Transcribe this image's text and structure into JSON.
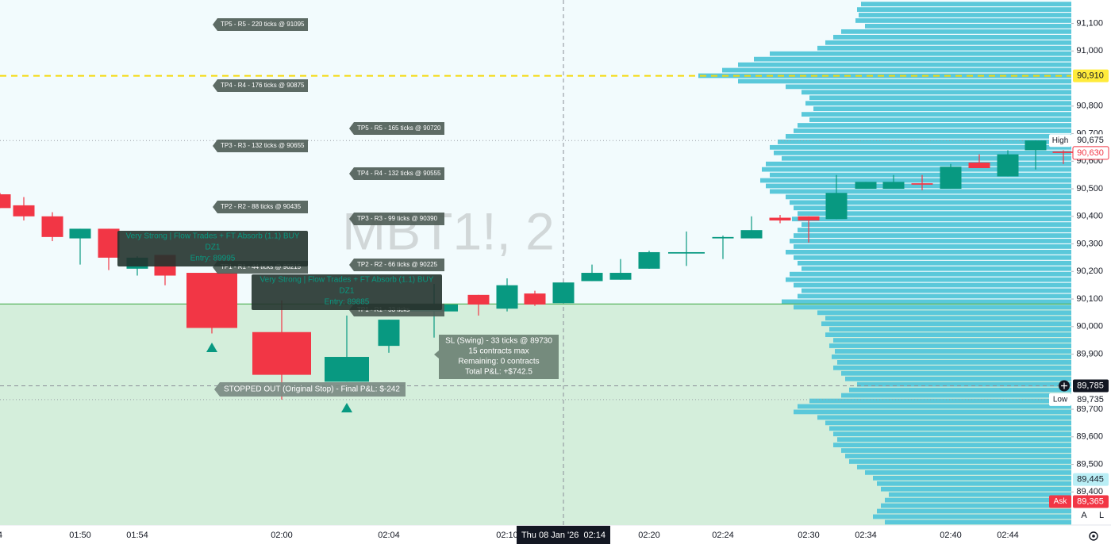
{
  "chart_data": {
    "type": "candlestick",
    "watermark": "MBT1!, 2",
    "categories": [
      "4",
      null,
      null,
      "01:50",
      null,
      "01:54",
      null,
      null,
      "02:00",
      null,
      "02:04",
      null,
      null,
      "02:10",
      null,
      "Thu 08 Jan '26  02:14",
      null,
      null,
      "02:20",
      null,
      "02:24",
      null,
      null,
      "02:30",
      null,
      "02:34",
      null,
      null,
      "02:40",
      null,
      "02:44",
      null,
      null
    ],
    "open": [
      90480,
      90440,
      90400,
      90320,
      90355,
      90210,
      90260,
      90195,
      89980,
      89800,
      89930,
      90055,
      90115,
      90065,
      90120,
      90085,
      90165,
      90170,
      90210,
      90265,
      90320,
      90320,
      90395,
      90400,
      90390,
      90500,
      90500,
      90520,
      90500,
      90595,
      90545,
      90640,
      90635
    ],
    "high": [
      90485,
      90470,
      90415,
      90355,
      90355,
      90255,
      90260,
      90195,
      90095,
      90040,
      90025,
      90155,
      90115,
      90175,
      90130,
      90160,
      90225,
      90245,
      90275,
      90345,
      90330,
      90400,
      90405,
      90400,
      90550,
      90525,
      90550,
      90550,
      90590,
      90625,
      90640,
      90675,
      90640
    ],
    "low": [
      90430,
      90385,
      90310,
      90225,
      90205,
      90185,
      90150,
      89975,
      89735,
      89800,
      89905,
      89960,
      90040,
      90055,
      90075,
      90085,
      90165,
      90170,
      90210,
      90220,
      90245,
      90320,
      90375,
      90305,
      90390,
      90500,
      90500,
      90495,
      90500,
      90575,
      90545,
      90570,
      90590
    ],
    "close": [
      90430,
      90400,
      90325,
      90355,
      90250,
      90250,
      90185,
      89995,
      89825,
      89890,
      90025,
      90080,
      90080,
      90150,
      90080,
      90160,
      90195,
      90195,
      90270,
      90270,
      90325,
      90350,
      90385,
      90385,
      90485,
      90525,
      90525,
      90515,
      90580,
      90575,
      90625,
      90675,
      90630
    ],
    "up_color": "#089981",
    "down_color": "#f23645",
    "ylim": [
      89280,
      91185
    ],
    "yticks": [
      {
        "value": 91100,
        "label": "91,100"
      },
      {
        "value": 91000,
        "label": "91,000"
      },
      {
        "value": 90800,
        "label": "90,800"
      },
      {
        "value": 90700,
        "label": "90,700"
      },
      {
        "value": 90600,
        "label": "90,600"
      },
      {
        "value": 90500,
        "label": "90,500"
      },
      {
        "value": 90400,
        "label": "90,400"
      },
      {
        "value": 90300,
        "label": "90,300"
      },
      {
        "value": 90200,
        "label": "90,200"
      },
      {
        "value": 90100,
        "label": "90,100"
      },
      {
        "value": 90000,
        "label": "90,000"
      },
      {
        "value": 89900,
        "label": "89,900"
      },
      {
        "value": 89700,
        "label": "89,700"
      },
      {
        "value": 89600,
        "label": "89,600"
      },
      {
        "value": 89500,
        "label": "89,500"
      },
      {
        "value": 89400,
        "label": "89,400"
      }
    ],
    "grid": false,
    "levels": [
      {
        "value": 90082,
        "color": "#4caf50",
        "fill_below": "#d4eedb"
      }
    ],
    "price_labels": [
      {
        "value": 90910,
        "label": "90,910",
        "color": "#ffeb3b",
        "text_color": "#131722",
        "line": "dashed",
        "line_color": "#f5d90a"
      },
      {
        "value": 90675,
        "label": "90,675",
        "tag": "High",
        "color": "#ffffff",
        "text_color": "#131722",
        "line": "dotted",
        "line_color": "#9aa0a6"
      },
      {
        "value": 90630,
        "label": "90,630",
        "color": "#ffffff",
        "text_color": "#f23645"
      },
      {
        "value": 89785,
        "label": "89,785",
        "color": "#131722",
        "text_color": "#ffffff",
        "line": "dashed",
        "line_color": "#8a8f98"
      },
      {
        "value": 89735,
        "label": "89,735",
        "tag": "Low",
        "color": "#ffffff",
        "text_color": "#131722",
        "line": "dotted",
        "line_color": "#9aa0a6"
      },
      {
        "value": 89445,
        "label": "89,445",
        "color": "#b9eef5",
        "text_color": "#131722"
      },
      {
        "value": 89365,
        "label": "89,365",
        "tag": "Ask",
        "color": "#f23645",
        "text_color": "#ffffff"
      }
    ],
    "volume_profile": {
      "color": "#5ac8da",
      "ylim": [
        89280,
        91180
      ],
      "xlim": [
        0,
        500
      ],
      "values": [
        265,
        270,
        268,
        272,
        260,
        290,
        300,
        310,
        320,
        380,
        400,
        420,
        440,
        470,
        420,
        360,
        340,
        330,
        335,
        325,
        340,
        330,
        345,
        350,
        360,
        370,
        380,
        375,
        365,
        385,
        390,
        380,
        392,
        385,
        380,
        360,
        355,
        350,
        345,
        352,
        340,
        345,
        350,
        355,
        350,
        360,
        350,
        345,
        340,
        355,
        360,
        350,
        340,
        345,
        365,
        350,
        320,
        310,
        315,
        305,
        310,
        300,
        305,
        298,
        302,
        295,
        300,
        290,
        285,
        270,
        280,
        290,
        330,
        345,
        350,
        320,
        310,
        305,
        300,
        295,
        300,
        290,
        285,
        280,
        270,
        260,
        250,
        245,
        240,
        230,
        235,
        240,
        245,
        250,
        235
      ]
    },
    "annotations": [
      {
        "style": "tp",
        "lines": [
          "TP5 - R5 - 220 ticks @ 91095"
        ]
      },
      {
        "style": "tp",
        "lines": [
          "TP4 - R4 - 176 ticks @ 90875"
        ]
      },
      {
        "style": "tp",
        "lines": [
          "TP3 - R3 - 132 ticks @ 90655"
        ]
      },
      {
        "style": "tp",
        "lines": [
          "TP2 - R2 - 88 ticks @ 90435"
        ]
      },
      {
        "style": "tp",
        "lines": [
          "TP1 - R1 - 44 ticks @ 90215"
        ]
      },
      {
        "style": "tp",
        "lines": [
          "TP5 - R5 - 165 ticks @ 90720"
        ]
      },
      {
        "style": "tp",
        "lines": [
          "TP4 - R4 - 132 ticks @ 90555"
        ]
      },
      {
        "style": "tp",
        "lines": [
          "TP3 - R3 - 99 ticks @ 90390"
        ]
      },
      {
        "style": "tp",
        "lines": [
          "TP2 - R2 - 66 ticks @ 90225"
        ]
      },
      {
        "style": "tp",
        "lines": [
          "TP1 - R1 - 33 ticks"
        ]
      },
      {
        "style": "signal",
        "lines": [
          "Very Strong | Flow Trades + FT Absorb (1.1) BUY",
          "DZ1",
          "Entry: 89995"
        ]
      },
      {
        "style": "signal",
        "lines": [
          "Very Strong | Flow Trades + FT Absorb (1.1) BUY",
          "DZ1",
          "Entry: 89885"
        ]
      },
      {
        "style": "sl",
        "lines": [
          "SL (Swing) - 33 ticks @ 89730",
          "15 contracts max",
          "Remaining: 0 contracts",
          "Total P&L: +$742.5"
        ]
      },
      {
        "style": "stop",
        "lines": [
          "STOPPED OUT (Original Stop) - Final P&L: $-242"
        ]
      }
    ]
  },
  "ui": {
    "buttons": [
      "A",
      "L"
    ]
  }
}
